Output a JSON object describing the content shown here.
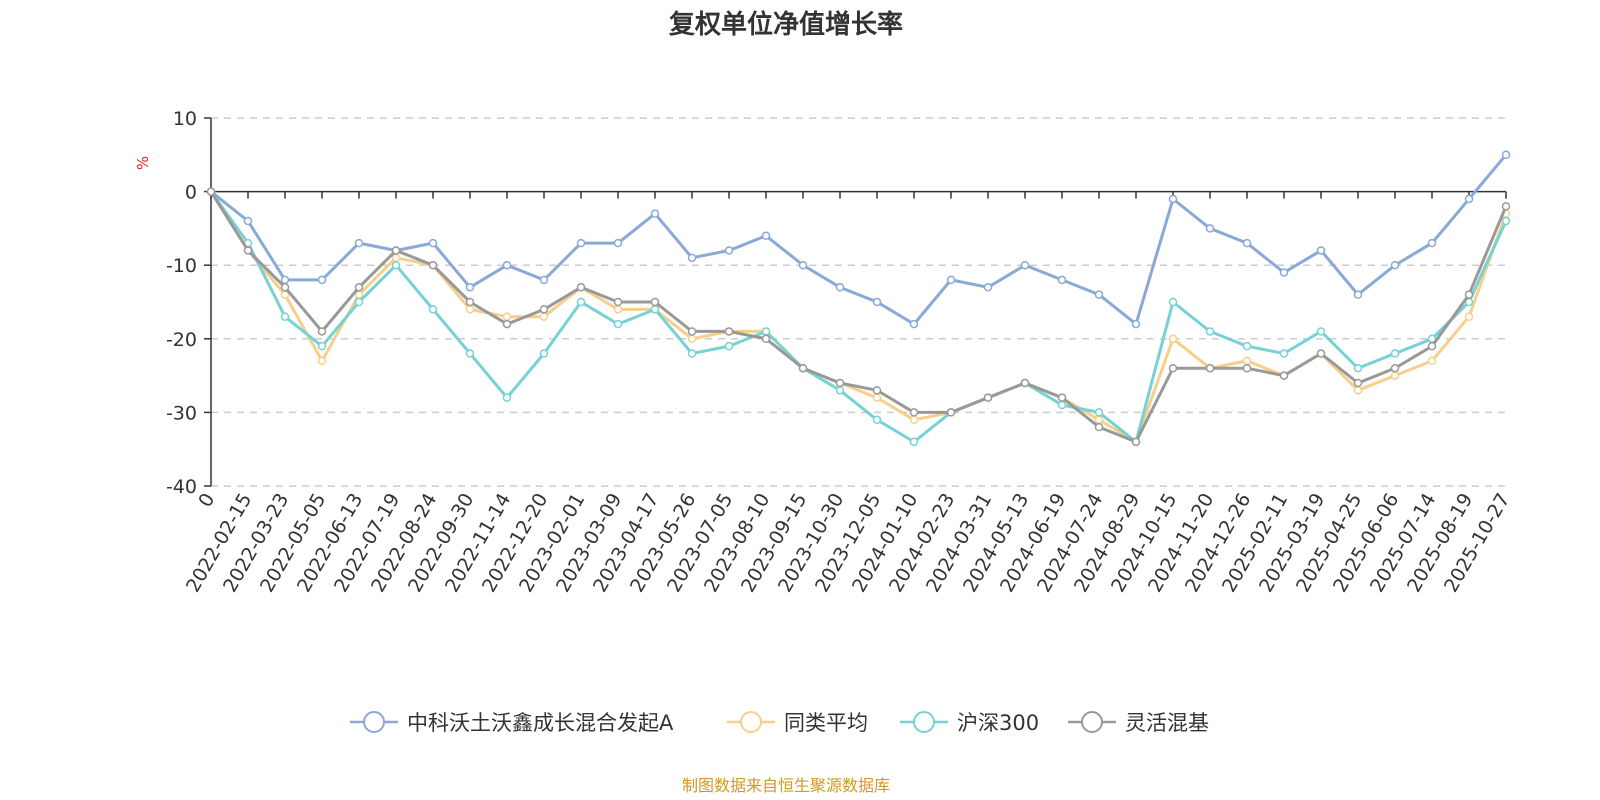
{
  "chart_data": {
    "type": "line",
    "title": "复权单位净值增长率",
    "ylabel": "%",
    "ylim": [
      -40,
      10
    ],
    "yticks": [
      10,
      0,
      -10,
      -20,
      -30,
      -40
    ],
    "grid": true,
    "legend_position": "bottom",
    "x_tick_labels": [
      "0",
      "2022-02-15",
      "2022-03-23",
      "2022-05-05",
      "2022-06-13",
      "2022-07-19",
      "2022-08-24",
      "2022-09-30",
      "2022-11-14",
      "2022-12-20",
      "2023-02-01",
      "2023-03-09",
      "2023-04-17",
      "2023-05-26",
      "2023-07-05",
      "2023-08-10",
      "2023-09-15",
      "2023-10-30",
      "2023-12-05",
      "2024-01-10",
      "2024-02-23",
      "2024-03-31",
      "2024-05-13",
      "2024-06-19",
      "2024-07-24",
      "2024-08-29",
      "2024-10-15",
      "2024-11-20",
      "2024-12-26",
      "2025-02-11",
      "2025-03-19",
      "2025-04-25",
      "2025-06-06",
      "2025-07-14",
      "2025-08-19",
      "2025-10-27"
    ],
    "series": [
      {
        "name": "中科沃土沃鑫成长混合发起A",
        "color": "#8aa8d8",
        "values": [
          0,
          -4,
          -12,
          -12,
          -7,
          -8,
          -7,
          -13,
          -10,
          -12,
          -7,
          -7,
          -3,
          -9,
          -8,
          -6,
          -10,
          -13,
          -15,
          -18,
          -12,
          -13,
          -10,
          -12,
          -14,
          -18,
          -1,
          -5,
          -7,
          -11,
          -8,
          -14,
          -10,
          -7,
          -1,
          5
        ]
      },
      {
        "name": "同类平均",
        "color": "#f8cf8a",
        "values": [
          0,
          -8,
          -14,
          -23,
          -14,
          -9,
          -10,
          -16,
          -17,
          -17,
          -13,
          -16,
          -16,
          -20,
          -19,
          -19,
          -24,
          -26,
          -28,
          -31,
          -30,
          -28,
          -26,
          -28,
          -31,
          -34,
          -20,
          -24,
          -23,
          -25,
          -22,
          -27,
          -25,
          -23,
          -17,
          -3
        ]
      },
      {
        "name": "沪深300",
        "color": "#76d2d4",
        "values": [
          0,
          -7,
          -17,
          -21,
          -15,
          -10,
          -16,
          -22,
          -28,
          -22,
          -15,
          -18,
          -16,
          -22,
          -21,
          -19,
          -24,
          -27,
          -31,
          -34,
          -30,
          -28,
          -26,
          -29,
          -30,
          -34,
          -15,
          -19,
          -21,
          -22,
          -19,
          -24,
          -22,
          -20,
          -15,
          -4
        ]
      },
      {
        "name": "灵活混基",
        "color": "#999999",
        "values": [
          0,
          -8,
          -13,
          -19,
          -13,
          -8,
          -10,
          -15,
          -18,
          -16,
          -13,
          -15,
          -15,
          -19,
          -19,
          -20,
          -24,
          -26,
          -27,
          -30,
          -30,
          -28,
          -26,
          -28,
          -32,
          -34,
          -24,
          -24,
          -24,
          -25,
          -22,
          -26,
          -24,
          -21,
          -14,
          -2
        ]
      }
    ]
  },
  "legend": {
    "items": [
      "中科沃土沃鑫成长混合发起A",
      "同类平均",
      "沪深300",
      "灵活混基"
    ]
  },
  "source_note": "制图数据来自恒生聚源数据库"
}
